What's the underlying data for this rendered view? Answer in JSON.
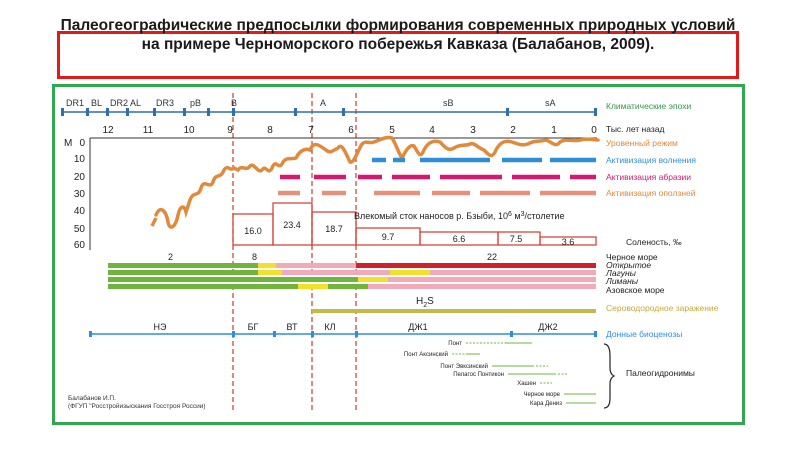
{
  "title": "Палеогеографические предпосылки формирования современных природных условий  на примере Черноморского побережья Кавказа (Балабанов, 2009).",
  "epochs": [
    "DR1",
    "BL",
    "DR2",
    "AL",
    "DR3",
    "pB",
    "B",
    "A",
    "sB",
    "sA"
  ],
  "time_ticks": [
    "12",
    "11",
    "10",
    "9",
    "8",
    "7",
    "6",
    "5",
    "4",
    "3",
    "2",
    "1",
    "0"
  ],
  "depth_axis": {
    "label": "M",
    "ticks": [
      "0",
      "10",
      "20",
      "30",
      "40",
      "50",
      "60"
    ]
  },
  "right_labels": {
    "climate": "Климатические эпохи",
    "years": "Тыс. лет назад",
    "level": "Уровенный режим",
    "waves": "Активизация волнения",
    "abrasion": "Активизация абразии",
    "landslides": "Активизация оползней",
    "salinity": "Соленость, ‰",
    "black_sea": "Черное море",
    "open": "Открытое",
    "lagoons": "Лагуны",
    "limans": "Лиманы",
    "azov": "Азовское море",
    "h2s_contam": "Сероводородное заражение",
    "biocenoses": "Донные биоценозы",
    "paleohydronyms": "Палеогидронимы"
  },
  "sediment": {
    "label": "Влекомый сток наносов р. Бзыби, 10",
    "sup": "6",
    "unit": "м",
    "unit_sup": "3",
    "tail": "/столетие",
    "values": [
      "16.0",
      "23.4",
      "18.7",
      "9.7",
      "6.6",
      "7.5",
      "3.6"
    ]
  },
  "salinity_values": [
    "2",
    "8",
    "22"
  ],
  "h2s": {
    "h": "H",
    "sub": "2",
    "s": "S"
  },
  "biocenoses": [
    "НЭ",
    "БГ",
    "ВТ",
    "КЛ",
    "ДЖ1",
    "ДЖ2"
  ],
  "paleohydronyms": [
    "Понт",
    "Понт Аксинский",
    "Понт Эвксинский",
    "Пелагос Понтикон",
    "Хашен",
    "Черное море",
    "Кара Дениз"
  ],
  "credit": [
    "Балабанов И.П.",
    "(ФГУП \"Росстройизыскания Госстроя России)"
  ],
  "colors": {
    "waves": "#2e8fd8",
    "abrasion": "#d8186c",
    "landslides": "#e8917a",
    "level": "#e08a3c",
    "sediment": "#d03a2a",
    "h2s": "#c8b84a",
    "biocenoses": "#2e8fd8",
    "green": "#6fb43c",
    "yellow": "#f2e02a",
    "pink": "#f2a9b8",
    "red": "#d0202a",
    "text_green": "#2f9a4a"
  }
}
